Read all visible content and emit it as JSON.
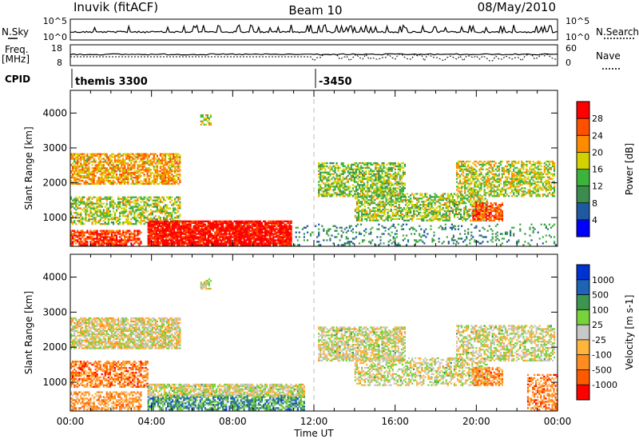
{
  "header": {
    "station": "Inuvik (fitACF)",
    "beam": "Beam 10",
    "date": "08/May/2010"
  },
  "labels": {
    "nsky": "N.Sky",
    "nsearch": "N.Search",
    "freq": "Freq.",
    "mhz": "[MHz]",
    "nave": "Nave",
    "cpid": "CPID",
    "nsky_top": "10^5",
    "nsky_bot": "10^0",
    "ns_top": "10^5",
    "ns_bot": "10^0",
    "freq_top": "18",
    "freq_bot": "8",
    "nave_top": "60",
    "nave_bot": "0"
  },
  "cpid_segments": [
    {
      "label": "themis 3300",
      "start_h": 0
    },
    {
      "label": "-3450",
      "start_h": 12
    }
  ],
  "colors": {
    "power": [
      "#0000ff",
      "#1e5aa0",
      "#3c8c50",
      "#3cb43c",
      "#d2d200",
      "#ff8c00",
      "#ff5000",
      "#ff0000"
    ],
    "velocity": [
      "#ff0000",
      "#ff5a00",
      "#ff8c1e",
      "#ffb43c",
      "#c8c8c8",
      "#78d23c",
      "#3c9650",
      "#1e64b4",
      "#0032d2"
    ]
  },
  "chart_data": [
    {
      "type": "heatmap",
      "title": "",
      "xlabel": "",
      "ylabel": "Slant Range [km]",
      "x_range_hours": [
        0,
        24
      ],
      "ylim": [
        180,
        4650
      ],
      "yticks": [
        "1000",
        "2000",
        "3000",
        "4000"
      ],
      "xticks": [],
      "colorbar": {
        "label": "Power [dB]",
        "range": [
          0,
          32
        ],
        "ticks": [
          "4",
          "8",
          "12",
          "16",
          "20",
          "24",
          "28"
        ]
      },
      "regions": [
        {
          "t0": 0.0,
          "t1": 5.4,
          "r0": 1950,
          "r1": 2850,
          "lvl": 0.66,
          "density": 0.7
        },
        {
          "t0": 0.0,
          "t1": 5.4,
          "r0": 800,
          "r1": 1600,
          "lvl": 0.52,
          "density": 0.55
        },
        {
          "t0": 0.0,
          "t1": 3.5,
          "r0": 200,
          "r1": 620,
          "lvl": 0.86,
          "density": 0.75
        },
        {
          "t0": 3.8,
          "t1": 10.9,
          "r0": 200,
          "r1": 920,
          "lvl": 0.96,
          "density": 0.9
        },
        {
          "t0": 6.4,
          "t1": 6.9,
          "r0": 3650,
          "r1": 3950,
          "lvl": 0.55,
          "density": 0.6
        },
        {
          "t0": 12.2,
          "t1": 16.5,
          "r0": 1600,
          "r1": 2550,
          "lvl": 0.48,
          "density": 0.6
        },
        {
          "t0": 14.0,
          "t1": 20.5,
          "r0": 900,
          "r1": 1700,
          "lvl": 0.5,
          "density": 0.55
        },
        {
          "t0": 19.0,
          "t1": 23.8,
          "r0": 1600,
          "r1": 2600,
          "lvl": 0.55,
          "density": 0.55
        },
        {
          "t0": 19.8,
          "t1": 21.3,
          "r0": 900,
          "r1": 1400,
          "lvl": 0.82,
          "density": 0.7
        },
        {
          "t0": 11.0,
          "t1": 24.0,
          "r0": 200,
          "r1": 800,
          "lvl": 0.3,
          "density": 0.15
        }
      ]
    },
    {
      "type": "heatmap",
      "title": "",
      "xlabel": "Time UT",
      "ylabel": "Slant Range [km]",
      "x_range_hours": [
        0,
        24
      ],
      "ylim": [
        180,
        4650
      ],
      "yticks": [
        "1000",
        "2000",
        "3000",
        "4000"
      ],
      "xticks": [
        "00:00",
        "04:00",
        "08:00",
        "12:00",
        "16:00",
        "20:00",
        "00:00"
      ],
      "colorbar": {
        "label": "Velocity [m s-1]",
        "range": [
          -1500,
          1500
        ],
        "ticks": [
          "-1000",
          "-500",
          "-100",
          "-25",
          "25",
          "100",
          "500",
          "1000"
        ]
      },
      "regions": [
        {
          "t0": 0.0,
          "t1": 5.4,
          "r0": 1950,
          "r1": 2850,
          "lvl": 0.47,
          "density": 0.75
        },
        {
          "t0": 0.0,
          "t1": 3.8,
          "r0": 850,
          "r1": 1600,
          "lvl": 0.24,
          "density": 0.6
        },
        {
          "t0": 0.0,
          "t1": 3.5,
          "r0": 200,
          "r1": 700,
          "lvl": 0.3,
          "density": 0.55
        },
        {
          "t0": 3.8,
          "t1": 11.5,
          "r0": 200,
          "r1": 650,
          "lvl": 0.72,
          "density": 0.7
        },
        {
          "t0": 3.8,
          "t1": 11.5,
          "r0": 600,
          "r1": 950,
          "lvl": 0.5,
          "density": 0.75
        },
        {
          "t0": 6.4,
          "t1": 6.9,
          "r0": 3650,
          "r1": 3950,
          "lvl": 0.5,
          "density": 0.6
        },
        {
          "t0": 12.2,
          "t1": 16.5,
          "r0": 1600,
          "r1": 2550,
          "lvl": 0.5,
          "density": 0.65
        },
        {
          "t0": 14.0,
          "t1": 20.5,
          "r0": 900,
          "r1": 1700,
          "lvl": 0.5,
          "density": 0.5
        },
        {
          "t0": 19.0,
          "t1": 23.8,
          "r0": 1600,
          "r1": 2600,
          "lvl": 0.5,
          "density": 0.55
        },
        {
          "t0": 19.8,
          "t1": 21.3,
          "r0": 900,
          "r1": 1400,
          "lvl": 0.28,
          "density": 0.65
        },
        {
          "t0": 22.5,
          "t1": 24.0,
          "r0": 200,
          "r1": 1200,
          "lvl": 0.25,
          "density": 0.5
        }
      ]
    }
  ]
}
